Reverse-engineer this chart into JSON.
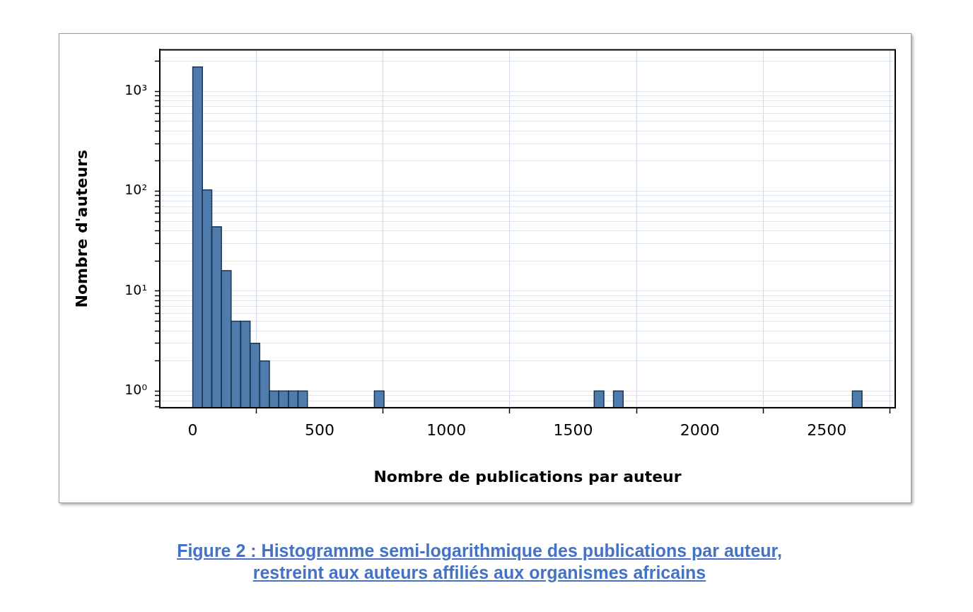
{
  "chart_data": {
    "type": "histogram",
    "xlabel": "Nombre de publications par auteur",
    "ylabel": "Nombre d'auteurs",
    "annotations": [
      "Figure 2 : Histogramme semi-logarithmique des publications par auteur, restreint aux auteurs affiliés aux organismes africains"
    ],
    "bins": [
      0,
      38,
      75,
      113,
      151,
      189,
      226,
      264,
      302,
      339,
      377,
      415,
      452,
      490,
      528,
      566,
      603,
      641,
      679,
      716,
      754,
      792,
      829,
      867,
      905,
      943,
      980,
      1018,
      1056,
      1093,
      1131,
      1169,
      1206,
      1244,
      1282,
      1320,
      1357,
      1395,
      1433,
      1470,
      1508,
      1546,
      1583,
      1621,
      1659,
      1697,
      1734,
      1772,
      1810,
      1847,
      1885,
      1923,
      1960,
      1998,
      2036,
      2074,
      2111,
      2149,
      2187,
      2224,
      2262,
      2300,
      2337,
      2375,
      2413,
      2451,
      2488,
      2526,
      2564,
      2601,
      2639
    ],
    "values": [
      1750,
      103,
      44,
      16,
      5,
      5,
      3,
      2,
      1,
      1,
      1,
      1,
      null,
      null,
      null,
      null,
      null,
      null,
      null,
      1,
      null,
      null,
      null,
      null,
      null,
      null,
      null,
      null,
      null,
      null,
      null,
      null,
      null,
      null,
      null,
      null,
      null,
      null,
      null,
      null,
      null,
      null,
      1,
      null,
      1,
      null,
      null,
      null,
      null,
      null,
      null,
      null,
      null,
      null,
      null,
      null,
      null,
      null,
      null,
      null,
      null,
      null,
      null,
      null,
      null,
      null,
      null,
      null,
      null,
      1
    ],
    "color": "#4f7cac",
    "log": "y",
    "xlim": [
      -130,
      2770
    ],
    "xticks": [
      0,
      500,
      1000,
      1500,
      2000,
      2500
    ],
    "ylim": [
      0.68,
      2600
    ],
    "yticks": [
      {
        "value": 0.7,
        "label": null
      },
      {
        "value": 0.8,
        "label": null
      },
      {
        "value": 0.9,
        "label": null
      },
      {
        "value": 1,
        "label": "10⁰"
      },
      {
        "value": 2,
        "label": null
      },
      {
        "value": 3,
        "label": null
      },
      {
        "value": 4,
        "label": null
      },
      {
        "value": 5,
        "label": null
      },
      {
        "value": 6,
        "label": null
      },
      {
        "value": 7,
        "label": null
      },
      {
        "value": 8,
        "label": null
      },
      {
        "value": 9,
        "label": null
      },
      {
        "value": 10,
        "label": "10¹"
      },
      {
        "value": 20,
        "label": null
      },
      {
        "value": 30,
        "label": null
      },
      {
        "value": 40,
        "label": null
      },
      {
        "value": 50,
        "label": null
      },
      {
        "value": 60,
        "label": null
      },
      {
        "value": 70,
        "label": null
      },
      {
        "value": 80,
        "label": null
      },
      {
        "value": 90,
        "label": null
      },
      {
        "value": 100,
        "label": "10²"
      },
      {
        "value": 200,
        "label": null
      },
      {
        "value": 300,
        "label": null
      },
      {
        "value": 400,
        "label": null
      },
      {
        "value": 500,
        "label": null
      },
      {
        "value": 600,
        "label": null
      },
      {
        "value": 700,
        "label": null
      },
      {
        "value": 800,
        "label": null
      },
      {
        "value": 900,
        "label": null
      },
      {
        "value": 1000,
        "label": "10³"
      },
      {
        "value": 2000,
        "label": null
      }
    ],
    "grid": true
  }
}
